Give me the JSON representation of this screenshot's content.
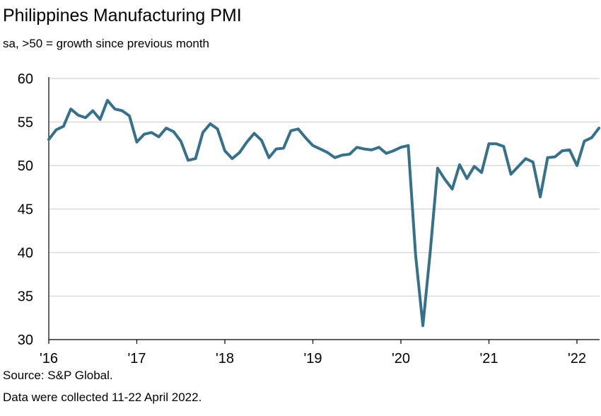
{
  "chart_data": {
    "type": "line",
    "title": "Philippines Manufacturing PMI",
    "subtitle": "sa, >50 = growth since previous month",
    "source": "Source: S&P Global.",
    "note": "Data were collected 11-22 April 2022.",
    "xlabel": "",
    "ylabel": "",
    "ylim": [
      30,
      60
    ],
    "yticks": [
      30,
      35,
      40,
      45,
      50,
      55,
      60
    ],
    "grid": true,
    "line_color": "#36708a",
    "x_tick_labels": [
      "'16",
      "'17",
      "'18",
      "'19",
      "'20",
      "'21",
      "'22"
    ],
    "start": "2016-01",
    "end": "2022-04",
    "series": [
      {
        "name": "Philippines Manufacturing PMI",
        "values": [
          53.0,
          54.1,
          54.5,
          56.5,
          55.8,
          55.5,
          56.3,
          55.3,
          57.5,
          56.5,
          56.3,
          55.7,
          52.7,
          53.6,
          53.8,
          53.3,
          54.3,
          53.9,
          52.8,
          50.6,
          50.8,
          53.8,
          54.8,
          54.2,
          51.7,
          50.8,
          51.5,
          52.7,
          53.7,
          52.9,
          50.9,
          51.9,
          52.0,
          54.0,
          54.2,
          53.2,
          52.3,
          51.9,
          51.5,
          50.9,
          51.2,
          51.3,
          52.1,
          51.9,
          51.8,
          52.1,
          51.4,
          51.7,
          52.1,
          52.3,
          39.7,
          31.6,
          40.1,
          49.7,
          48.4,
          47.3,
          50.1,
          48.5,
          49.9,
          49.2,
          52.5,
          52.5,
          52.2,
          49.0,
          49.9,
          50.8,
          50.4,
          46.4,
          50.9,
          51.0,
          51.7,
          51.8,
          50.0,
          52.8,
          53.2,
          54.3
        ]
      }
    ]
  }
}
